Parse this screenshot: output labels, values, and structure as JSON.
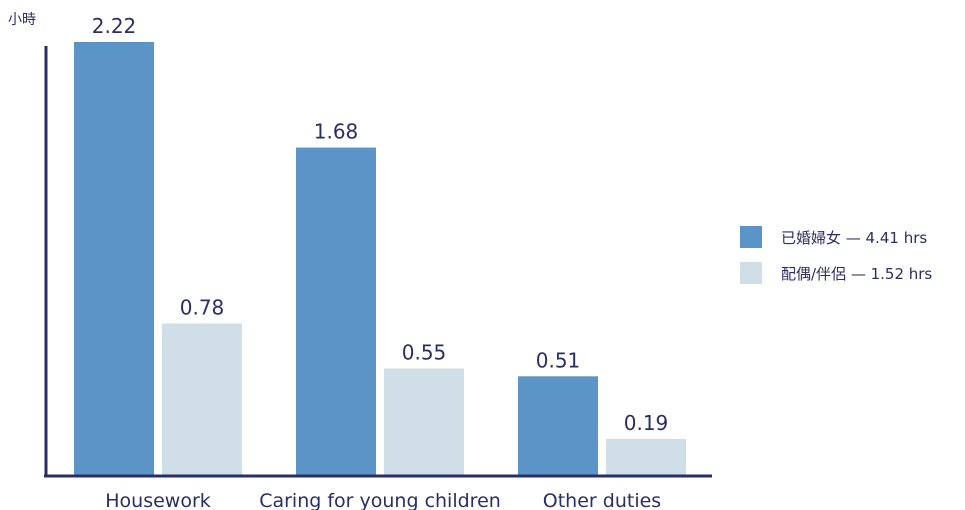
{
  "chart_data": {
    "type": "bar",
    "ylabel": "小時",
    "categories": [
      "Housework",
      "Caring for young children",
      "Other duties"
    ],
    "ylim": [
      0,
      2.5
    ],
    "series": [
      {
        "name": "已婚婦女 — 4.41 hrs",
        "values": [
          2.22,
          1.68,
          0.51
        ],
        "color": "#5b95c8"
      },
      {
        "name": "配偶/伴侶 — 1.52 hrs",
        "values": [
          0.78,
          0.55,
          0.19
        ],
        "color": "#d0dee7"
      }
    ],
    "value_labels": [
      [
        "2.22",
        "1.68",
        "0.51"
      ],
      [
        "0.78",
        "0.55",
        "0.19"
      ]
    ],
    "legend": "right",
    "grid": false,
    "axis_color": "#2b2e63"
  }
}
